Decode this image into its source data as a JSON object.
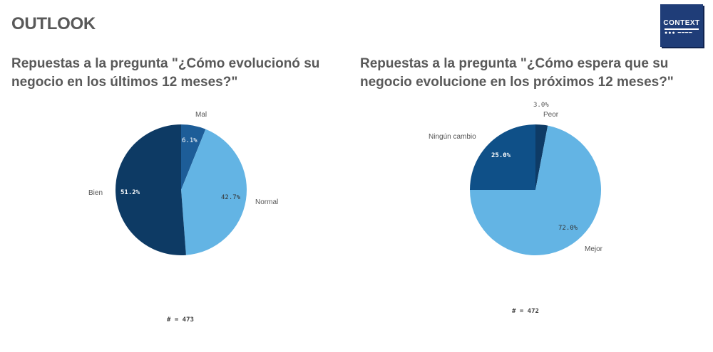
{
  "header": {
    "title": "OUTLOOK"
  },
  "logo": {
    "text": "CONTEXT",
    "dots": "●●● ━━━━"
  },
  "colors": {
    "bien": "#0d3a64",
    "mal": "#1d5d98",
    "normal": "#63b4e4",
    "mejor": "#63b4e4",
    "ningun": "#0f5088",
    "peor": "#0e3b66"
  },
  "chart_data": [
    {
      "type": "pie",
      "title": "Repuestas a la pregunta \"¿Cómo evolucionó su negocio en los últimos 12 meses?\"",
      "slices": [
        {
          "label": "Mal",
          "value": 6.1,
          "value_label": "6.1%"
        },
        {
          "label": "Normal",
          "value": 42.7,
          "value_label": "42.7%"
        },
        {
          "label": "Bien",
          "value": 51.2,
          "value_label": "51.2%"
        }
      ],
      "n_label": "# = 473"
    },
    {
      "type": "pie",
      "title": "Repuestas a la pregunta \"¿Cómo espera que su negocio evolucione en los próximos 12 meses?\"",
      "slices": [
        {
          "label": "Peor",
          "value": 3.0,
          "value_label": "3.0%"
        },
        {
          "label": "Mejor",
          "value": 72.0,
          "value_label": "72.0%"
        },
        {
          "label": "Ningún cambio",
          "value": 25.0,
          "value_label": "25.0%"
        }
      ],
      "n_label": "# = 472"
    }
  ]
}
